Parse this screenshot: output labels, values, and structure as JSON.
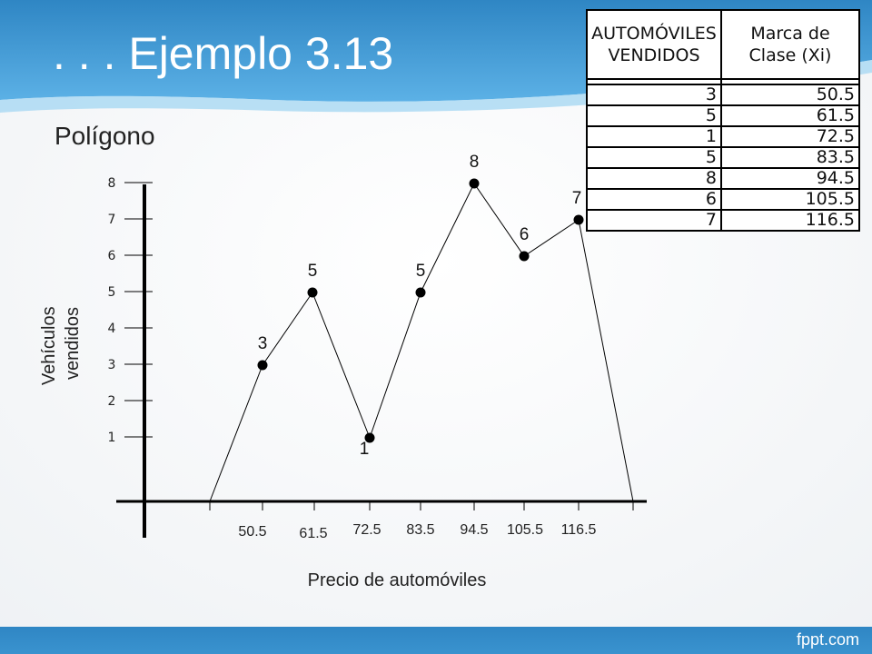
{
  "slide": {
    "title": ". . . Ejemplo 3.13",
    "subtitle": "Polígono",
    "brand": "fppt.com",
    "colors": {
      "header": "#3a93cf",
      "header_light": "#7fc4ee",
      "footer": "#2f86c4",
      "text": "#222222"
    }
  },
  "table": {
    "headers": [
      "AUTOMÓVILES VENDIDOS",
      "Marca de Clase (Xi)"
    ],
    "rows": [
      [
        "3",
        "50.5"
      ],
      [
        "5",
        "61.5"
      ],
      [
        "1",
        "72.5"
      ],
      [
        "5",
        "83.5"
      ],
      [
        "8",
        "94.5"
      ],
      [
        "6",
        "105.5"
      ],
      [
        "7",
        "116.5"
      ]
    ]
  },
  "chart_data": {
    "type": "line",
    "xlabel": "Precio de automóviles",
    "ylabel": "Vehículos vendidos",
    "categories": [
      "50.5",
      "61.5",
      "72.5",
      "83.5",
      "94.5",
      "105.5",
      "116.5"
    ],
    "values": [
      3,
      5,
      1,
      5,
      8,
      6,
      7
    ],
    "data_labels": [
      "3",
      "5",
      "1",
      "5",
      "8",
      "6",
      "7"
    ],
    "yticks": [
      "1",
      "2",
      "3",
      "4",
      "5",
      "6",
      "7",
      "8"
    ],
    "ylim": [
      0,
      8
    ],
    "closed_polygon": true,
    "grid": false
  }
}
